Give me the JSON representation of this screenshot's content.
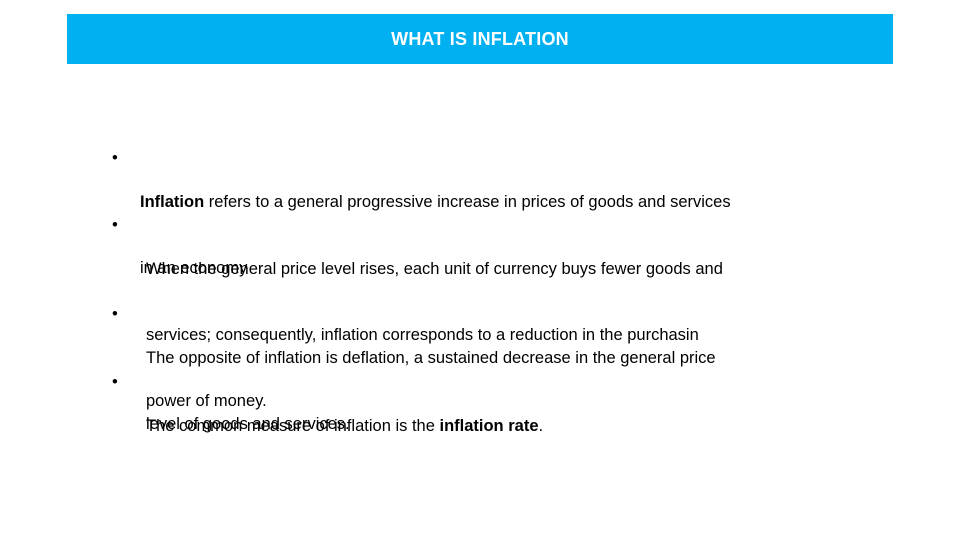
{
  "title": "WHAT IS INFLATION",
  "bullet_symbol": "•",
  "bullets": [
    {
      "line1_bold": "Inflation",
      "line1_rest": " refers to a general progressive increase in prices of goods and services",
      "line2": "in an economy"
    },
    {
      "line1": "When the general price level rises, each unit of currency buys fewer goods and",
      "line2": "services; consequently, inflation corresponds to a reduction in the purchasin",
      "line3": "power of money."
    },
    {
      "line1": "The opposite of inflation is deflation, a sustained decrease in the general price",
      "line2": "level of goods and services."
    },
    {
      "prefix": "The common measure of inflation is the ",
      "bold": "inflation rate",
      "suffix": "."
    }
  ],
  "colors": {
    "title_bar": "#00b0f0",
    "title_text": "#ffffff",
    "body_text": "#000000"
  }
}
